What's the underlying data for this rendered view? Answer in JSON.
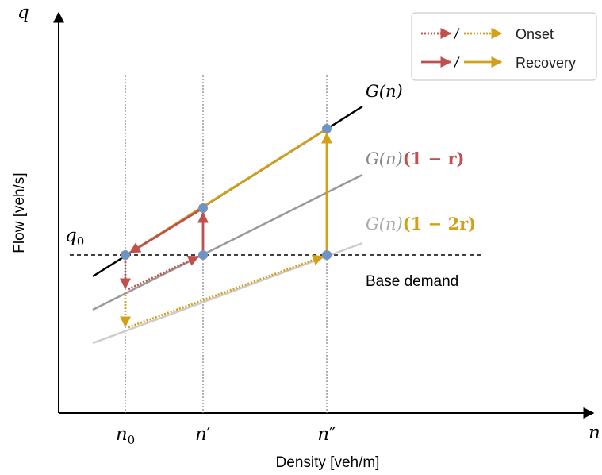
{
  "axes": {
    "x_var": "n",
    "y_var": "q",
    "xlabel": "Density [veh/m]",
    "ylabel": "Flow [veh/s]"
  },
  "ticks": {
    "x": [
      {
        "base": "n",
        "suffix": "0"
      },
      {
        "base": "n",
        "suffix": "′"
      },
      {
        "base": "n",
        "suffix": "″"
      }
    ],
    "y": {
      "base": "q",
      "suffix": "0"
    }
  },
  "curves": {
    "g": {
      "label": "G(n)"
    },
    "g1": {
      "base": "G(n)",
      "factor": "(1 − r)",
      "factor_color": "#c0504d"
    },
    "g2": {
      "base": "G(n)",
      "factor": "(1 − 2r)",
      "factor_color": "#d4a017"
    }
  },
  "base_demand": "Base demand",
  "legend": {
    "onset": "Onset",
    "recovery": "Recovery",
    "sep": "/"
  },
  "colors": {
    "red": "#c0504d",
    "gold": "#d4a017",
    "point": "#6f94c4",
    "g_line": "#000000",
    "g1_line": "#999999",
    "g2_line": "#cccccc"
  }
}
